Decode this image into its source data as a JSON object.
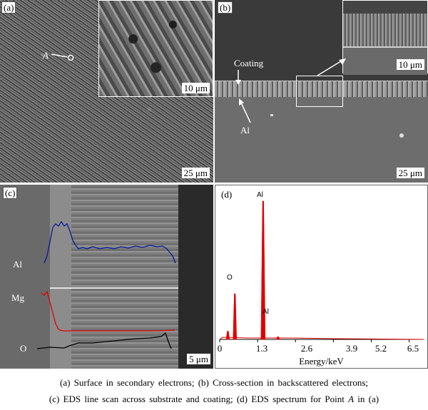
{
  "panels": {
    "a": {
      "label": "(a)",
      "scale_main": "25 μm",
      "scale_inset": "10 μm",
      "point_label": "A"
    },
    "b": {
      "label": "(b)",
      "scale_main": "25 μm",
      "scale_inset": "10 μm",
      "coating_label": "Coating",
      "substrate_label": "Al"
    },
    "c": {
      "label": "(c)",
      "scale": "5 μm",
      "lines": {
        "al": "Al",
        "mg": "Mg",
        "o": "O"
      }
    },
    "d": {
      "label": "(d)",
      "peak_labels": {
        "al_main": "Al",
        "o": "O",
        "al_minor": "Al"
      },
      "x_ticks": [
        "0",
        "1.3",
        "2.6",
        "3.9",
        "5.2",
        "6.5"
      ],
      "x_label": "Energy/keV"
    }
  },
  "chart_data": {
    "type": "bar",
    "x_ticks": [
      0,
      1.3,
      2.6,
      3.9,
      5.2,
      6.5
    ],
    "xlim": [
      0,
      7.0
    ],
    "xlabel": "Energy/keV",
    "peaks": [
      {
        "label": "",
        "energy": 0.28,
        "height": 0.06
      },
      {
        "label": "O",
        "energy": 0.52,
        "height": 0.33
      },
      {
        "label": "Al",
        "energy": 1.49,
        "height": 1.0
      },
      {
        "label": "",
        "energy": 2.0,
        "height": 0.02
      }
    ],
    "color": "#e00000"
  },
  "caption": {
    "line1": "(a)  Surface  in  secondary  electrons;  (b)  Cross-section  in  backscattered  electrons;",
    "line2_pre": "(c)  EDS  line  scan  across  substrate  and  coating;  (d) EDS spectrum for Point ",
    "line2_point": "A",
    "line2_post": " in (a)"
  }
}
